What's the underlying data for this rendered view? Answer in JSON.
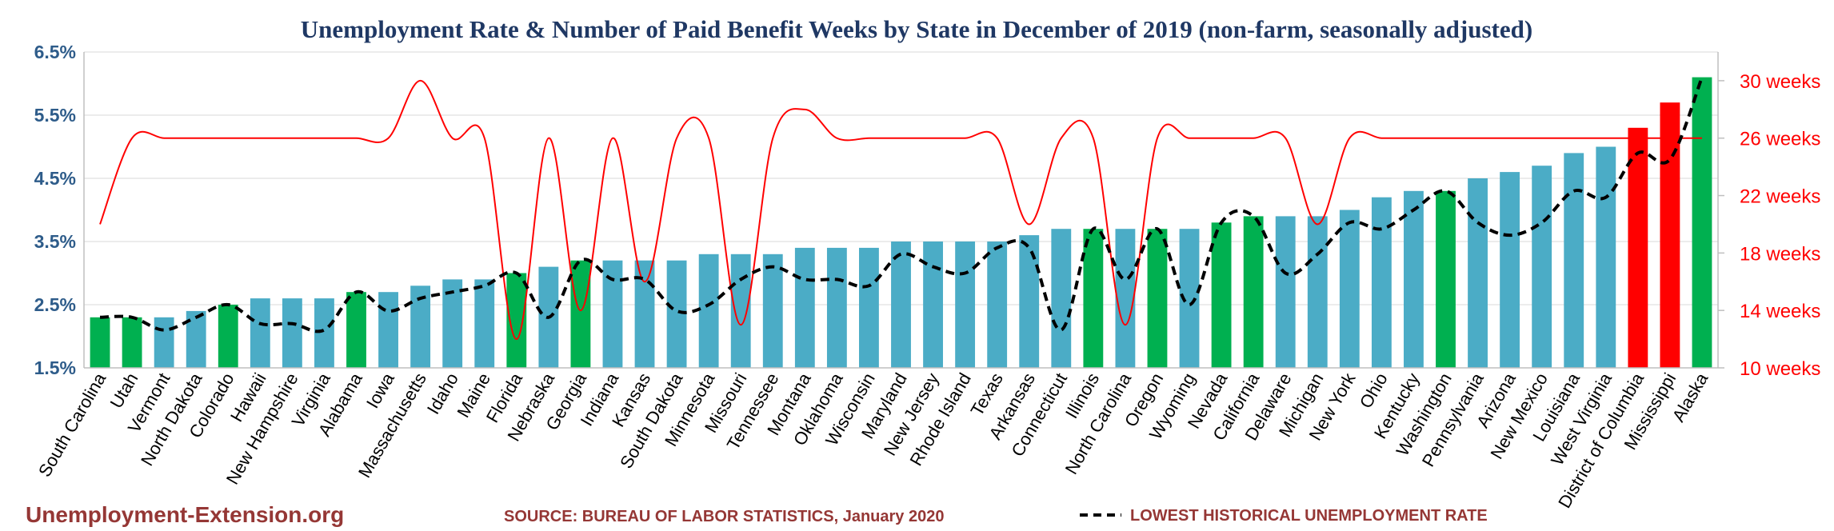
{
  "chart_data": {
    "type": "bar",
    "title": "Unemployment Rate & Number of Paid Benefit Weeks by State in December of 2019 (non-farm, seasonally adjusted)",
    "categories": [
      "South Carolina",
      "Utah",
      "Vermont",
      "North Dakota",
      "Colorado",
      "Hawaii",
      "New Hampshire",
      "Virginia",
      "Alabama",
      "Iowa",
      "Massachusetts",
      "Idaho",
      "Maine",
      "Florida",
      "Nebraska",
      "Georgia",
      "Indiana",
      "Kansas",
      "South Dakota",
      "Minnesota",
      "Missouri",
      "Tennessee",
      "Montana",
      "Oklahoma",
      "Wisconsin",
      "Maryland",
      "New Jersey",
      "Rhode Island",
      "Texas",
      "Arkansas",
      "Connecticut",
      "Illinois",
      "North Carolina",
      "Oregon",
      "Wyoming",
      "Nevada",
      "California",
      "Delaware",
      "Michigan",
      "New York",
      "Ohio",
      "Kentucky",
      "Washington",
      "Pennsylvania",
      "Arizona",
      "New Mexico",
      "Louisiana",
      "West Virginia",
      "District of Columbia",
      "Mississippi",
      "Alaska"
    ],
    "series": [
      {
        "name": "Unemployment Rate",
        "axis": "left",
        "values": [
          2.3,
          2.3,
          2.3,
          2.4,
          2.5,
          2.6,
          2.6,
          2.6,
          2.7,
          2.7,
          2.8,
          2.9,
          2.9,
          3.0,
          3.1,
          3.2,
          3.2,
          3.2,
          3.2,
          3.3,
          3.3,
          3.3,
          3.4,
          3.4,
          3.4,
          3.5,
          3.5,
          3.5,
          3.5,
          3.6,
          3.7,
          3.7,
          3.7,
          3.7,
          3.7,
          3.8,
          3.9,
          3.9,
          3.9,
          4.0,
          4.2,
          4.3,
          4.3,
          4.5,
          4.6,
          4.7,
          4.9,
          5.0,
          5.3,
          5.7,
          6.1
        ],
        "colors": [
          "#00b050",
          "#00b050",
          "#4bacc6",
          "#4bacc6",
          "#00b050",
          "#4bacc6",
          "#4bacc6",
          "#4bacc6",
          "#00b050",
          "#4bacc6",
          "#4bacc6",
          "#4bacc6",
          "#4bacc6",
          "#00b050",
          "#4bacc6",
          "#00b050",
          "#4bacc6",
          "#4bacc6",
          "#4bacc6",
          "#4bacc6",
          "#4bacc6",
          "#4bacc6",
          "#4bacc6",
          "#4bacc6",
          "#4bacc6",
          "#4bacc6",
          "#4bacc6",
          "#4bacc6",
          "#4bacc6",
          "#4bacc6",
          "#4bacc6",
          "#00b050",
          "#4bacc6",
          "#00b050",
          "#4bacc6",
          "#00b050",
          "#00b050",
          "#4bacc6",
          "#4bacc6",
          "#4bacc6",
          "#4bacc6",
          "#4bacc6",
          "#00b050",
          "#4bacc6",
          "#4bacc6",
          "#4bacc6",
          "#4bacc6",
          "#4bacc6",
          "#ff0000",
          "#ff0000",
          "#00b050"
        ]
      },
      {
        "name": "Lowest Historical Unemployment Rate",
        "axis": "left",
        "style": "dashed",
        "values": [
          2.3,
          2.3,
          2.1,
          2.3,
          2.5,
          2.2,
          2.2,
          2.1,
          2.7,
          2.4,
          2.6,
          2.7,
          2.8,
          3.0,
          2.3,
          3.2,
          2.9,
          2.9,
          2.4,
          2.5,
          2.9,
          3.1,
          2.9,
          2.9,
          2.8,
          3.3,
          3.1,
          3.0,
          3.4,
          3.4,
          2.1,
          3.7,
          2.9,
          3.7,
          2.5,
          3.8,
          3.9,
          3.0,
          3.3,
          3.8,
          3.7,
          4.0,
          4.3,
          3.8,
          3.6,
          3.8,
          4.3,
          4.2,
          4.9,
          4.8,
          6.1
        ]
      },
      {
        "name": "Paid Benefit Weeks",
        "axis": "right",
        "values": [
          20,
          26,
          26,
          26,
          26,
          26,
          26,
          26,
          26,
          26,
          30,
          26,
          26,
          12,
          26,
          14,
          26,
          16,
          26,
          26,
          13,
          26,
          28,
          26,
          26,
          26,
          26,
          26,
          26,
          20,
          26,
          26,
          13,
          26,
          26,
          26,
          26,
          26,
          20,
          26,
          26,
          26,
          26,
          26,
          26,
          26,
          26,
          26,
          26,
          26,
          26
        ]
      }
    ],
    "y_left": {
      "ylim": [
        1.5,
        6.5
      ],
      "ticks": [
        "1.5%",
        "2.5%",
        "3.5%",
        "4.5%",
        "5.5%",
        "6.5%"
      ]
    },
    "y_right": {
      "ylim": [
        10,
        32
      ],
      "ticks": [
        "10 weeks",
        "14 weeks",
        "18 weeks",
        "22 weeks",
        "26 weeks",
        "30 weeks"
      ],
      "tick_values": [
        10,
        14,
        18,
        22,
        26,
        30
      ]
    },
    "grid": true
  },
  "footer": {
    "site": "Unemployment-Extension.org",
    "source": "SOURCE: BUREAU OF LABOR STATISTICS, January 2020",
    "legend": "LOWEST HISTORICAL UNEMPLOYMENT RATE"
  },
  "colors": {
    "title": "#1f3864",
    "left_axis": "#2e5c8a",
    "right_axis": "#ff0000",
    "footer": "#953735",
    "dashed": "#000000",
    "weeks_line": "#ff0000",
    "grid": "#d9d9d9"
  }
}
